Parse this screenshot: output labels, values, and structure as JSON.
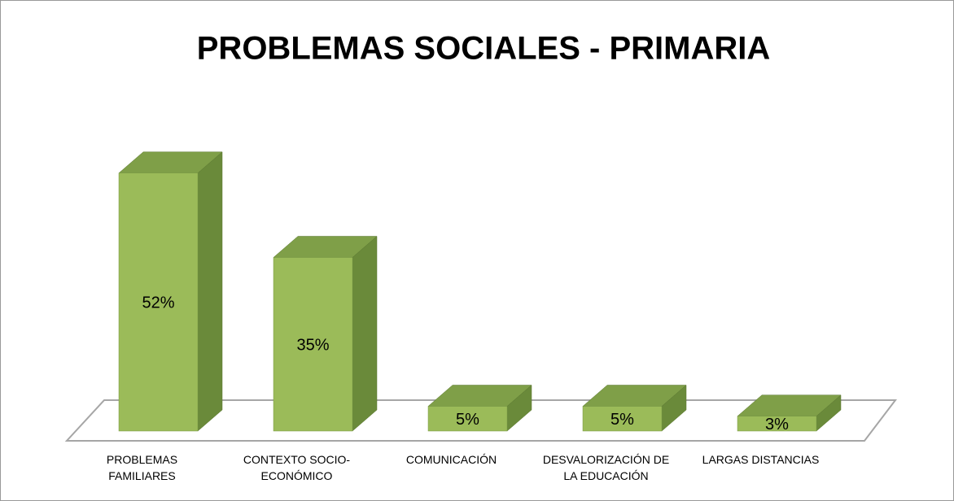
{
  "chart_data": {
    "type": "bar3d",
    "title": "PROBLEMAS SOCIALES - PRIMARIA",
    "categories": [
      "PROBLEMAS FAMILIARES",
      "CONTEXTO SOCIO-ECONÓMICO",
      "COMUNICACIÓN",
      "DESVALORIZACIÓN DE LA EDUCACIÓN",
      "LARGAS DISTANCIAS"
    ],
    "values": [
      52,
      35,
      5,
      5,
      3
    ],
    "value_labels": [
      "52%",
      "35%",
      "5%",
      "5%",
      "3%"
    ],
    "color": "#9bbb59"
  }
}
